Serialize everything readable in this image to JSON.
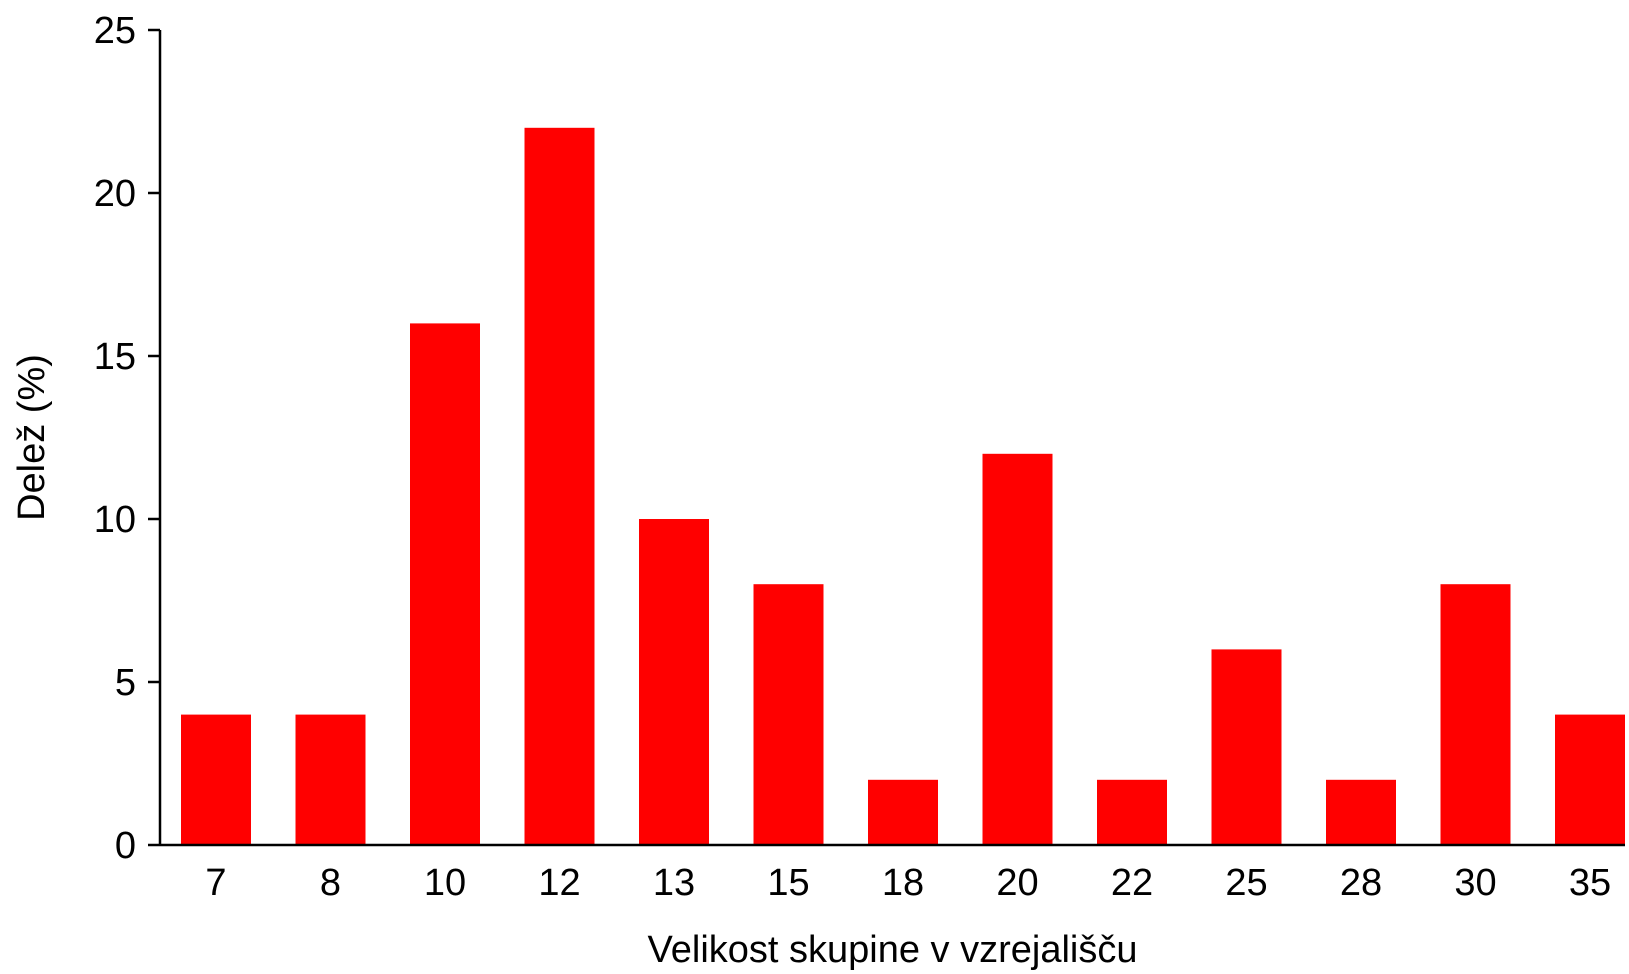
{
  "chart_data": {
    "type": "bar",
    "categories": [
      "7",
      "8",
      "10",
      "12",
      "13",
      "15",
      "18",
      "20",
      "22",
      "25",
      "28",
      "30",
      "35"
    ],
    "values": [
      4,
      4,
      16,
      22,
      10,
      8,
      2,
      12,
      2,
      6,
      2,
      8,
      4
    ],
    "xlabel": "Velikost skupine v vzrejališču",
    "ylabel": "Delež (%)",
    "ylim": [
      0,
      25
    ],
    "yticks": [
      0,
      5,
      10,
      15,
      20,
      25
    ],
    "grid": false,
    "legend": "none",
    "bar_color": "#ff0000",
    "axis_color": "#000000"
  }
}
